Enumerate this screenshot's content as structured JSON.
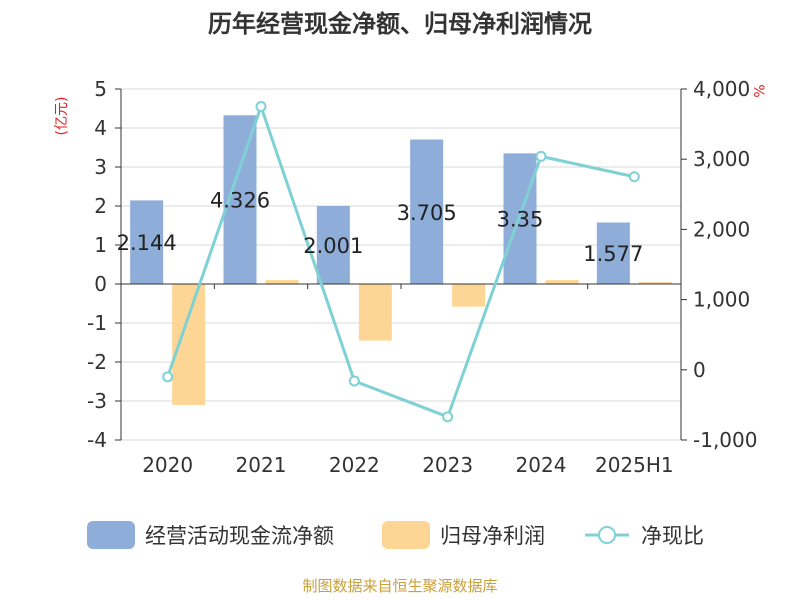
{
  "chart_data": {
    "type": "bar",
    "title": "历年经营现金净额、归母净利润情况",
    "categories": [
      "2020",
      "2021",
      "2022",
      "2023",
      "2024",
      "2025H1"
    ],
    "left_axis": {
      "unit": "(亿元)",
      "range": [
        -4,
        5
      ],
      "ticks": [
        "5",
        "4",
        "3",
        "2",
        "1",
        "0",
        "-1",
        "-2",
        "-3",
        "-4"
      ],
      "tick_values": [
        5,
        4,
        3,
        2,
        1,
        0,
        -1,
        -2,
        -3,
        -4
      ]
    },
    "right_axis": {
      "unit": "%",
      "range": [
        -1000,
        4000
      ],
      "ticks": [
        "4,000",
        "3,000",
        "2,000",
        "1,000",
        "0",
        "-1,000"
      ],
      "tick_values": [
        4000,
        3000,
        2000,
        1000,
        0,
        -1000
      ]
    },
    "series": [
      {
        "name": "经营活动现金流净额",
        "type": "bar",
        "axis": "left",
        "color": "#8eadd8",
        "values": [
          2.144,
          4.326,
          2.001,
          3.705,
          3.35,
          1.577
        ],
        "labels": [
          "2.144",
          "4.326",
          "2.001",
          "3.705",
          "3.35",
          "1.577"
        ]
      },
      {
        "name": "归母净利润",
        "type": "bar",
        "axis": "left",
        "color": "#fdd594",
        "values": [
          -3.1,
          0.1,
          -1.45,
          -0.58,
          0.1,
          0.05
        ]
      },
      {
        "name": "净现比",
        "type": "line",
        "axis": "right",
        "color": "#7fd1d6",
        "values": [
          -100,
          3750,
          -160,
          -670,
          3040,
          2750
        ]
      }
    ],
    "grid": true,
    "legend_position": "bottom",
    "source": "制图数据来自恒生聚源数据库",
    "colors": {
      "unit": "#e02020",
      "source": "#c9a13a",
      "axis": "#333333",
      "grid": "#d9d9d9"
    }
  }
}
